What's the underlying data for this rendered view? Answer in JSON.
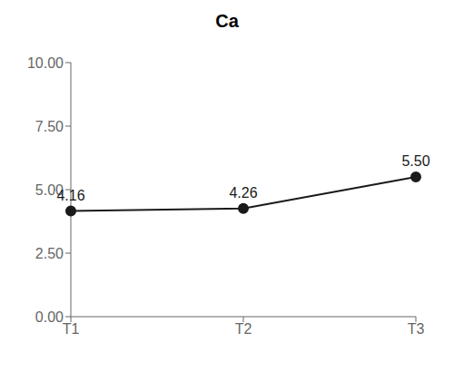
{
  "chart_data": {
    "type": "line",
    "title": "Ca",
    "categories": [
      "T1",
      "T2",
      "T3"
    ],
    "values": [
      4.16,
      4.26,
      5.5
    ],
    "value_labels": [
      "4.16",
      "4.26",
      "5.50"
    ],
    "data_labels": true,
    "color": "#1a1a1a",
    "marker": "circle",
    "ylim": [
      0.0,
      10.0
    ],
    "yticks": [
      {
        "value": 0.0,
        "label": "0.00"
      },
      {
        "value": 2.5,
        "label": "2.50"
      },
      {
        "value": 5.0,
        "label": "5.00"
      },
      {
        "value": 7.5,
        "label": "7.50"
      },
      {
        "value": 10.0,
        "label": "10.00"
      }
    ],
    "grid": false
  }
}
